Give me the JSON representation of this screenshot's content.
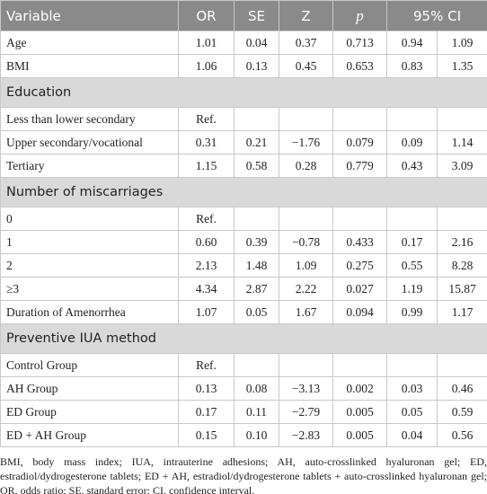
{
  "table": {
    "header": [
      "Variable",
      "OR",
      "SE",
      "Z",
      "p",
      "95% CI"
    ],
    "rows": [
      [
        "Age",
        "1.01",
        "0.04",
        "0.37",
        "0.713",
        "0.94",
        "1.09"
      ],
      [
        "BMI",
        "1.06",
        "0.13",
        "0.45",
        "0.653",
        "0.83",
        "1.35"
      ],
      [
        "Education"
      ],
      [
        "Less than lower secondary",
        "Ref."
      ],
      [
        "Upper secondary/vocational",
        "0.31",
        "0.21",
        "−1.76",
        "0.079",
        "0.09",
        "1.14"
      ],
      [
        "Tertiary",
        "1.15",
        "0.58",
        "0.28",
        "0.779",
        "0.43",
        "3.09"
      ],
      [
        "Number of miscarriages"
      ],
      [
        "0",
        "Ref."
      ],
      [
        "1",
        "0.60",
        "0.39",
        "−0.78",
        "0.433",
        "0.17",
        "2.16"
      ],
      [
        "2",
        "2.13",
        "1.48",
        "1.09",
        "0.275",
        "0.55",
        "8.28"
      ],
      [
        "≥3",
        "4.34",
        "2.87",
        "2.22",
        "0.027",
        "1.19",
        "15.87"
      ],
      [
        "Duration of Amenorrhea",
        "1.07",
        "0.05",
        "1.67",
        "0.094",
        "0.99",
        "1.17"
      ],
      [
        "Preventive IUA method"
      ],
      [
        "Control Group",
        "Ref."
      ],
      [
        "AH Group",
        "0.13",
        "0.08",
        "−3.13",
        "0.002",
        "0.03",
        "0.46"
      ],
      [
        "ED Group",
        "0.17",
        "0.11",
        "−2.79",
        "0.005",
        "0.05",
        "0.59"
      ],
      [
        "ED + AH Group",
        "0.15",
        "0.10",
        "−2.83",
        "0.005",
        "0.04",
        "0.56"
      ]
    ],
    "footnote": "BMI, body mass index; IUA, intrauterine adhesions; AH, auto-crosslinked hyaluronan gel; ED, estradiol/dydrogesterone tablets; ED + AH, estradiol/dydrogesterone tablets + auto-crosslinked hyaluronan gel; OR, odds ratio; SE, standard error; CI, confidence interval."
  }
}
